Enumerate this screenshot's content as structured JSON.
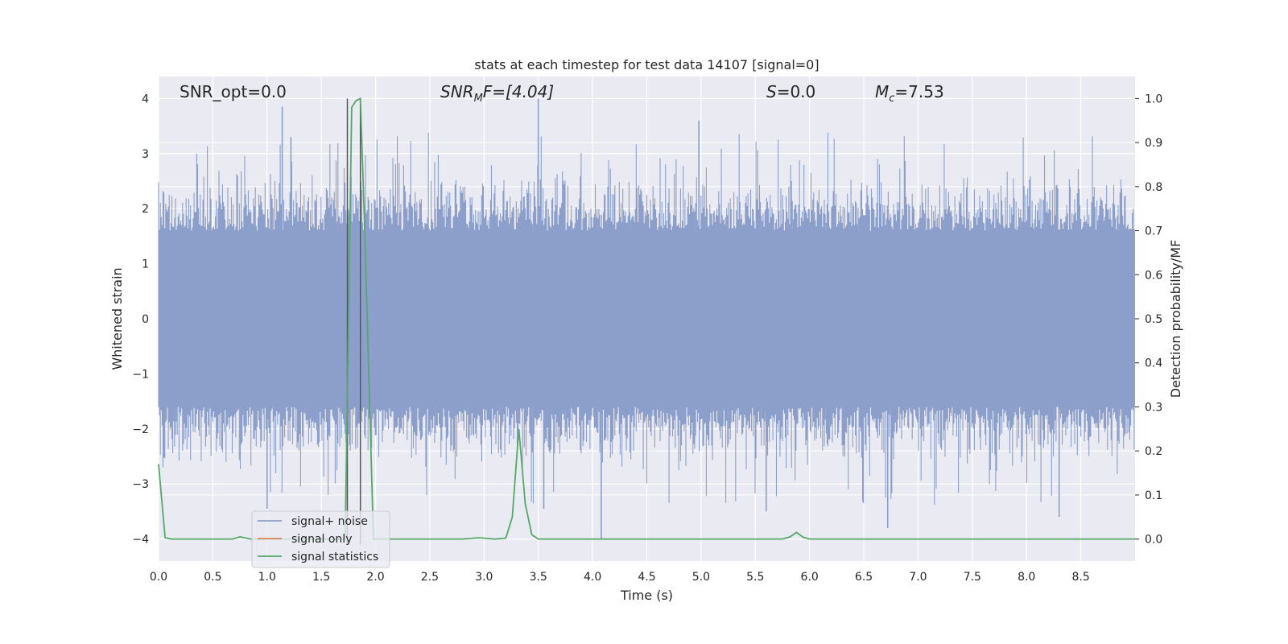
{
  "chart_data": {
    "type": "line",
    "title": "stats at each timestep for test data 14107 [signal=0]",
    "xlabel": "Time (s)",
    "ylabel": "Whitened strain",
    "y2label": "Detection probability/MF",
    "xlim": [
      0,
      9
    ],
    "ylim": [
      -4.4,
      4.4
    ],
    "y2lim": [
      -0.05,
      1.05
    ],
    "x_ticks": [
      0.0,
      0.5,
      1.0,
      1.5,
      2.0,
      2.5,
      3.0,
      3.5,
      4.0,
      4.5,
      5.0,
      5.5,
      6.0,
      6.5,
      7.0,
      7.5,
      8.0,
      8.5
    ],
    "x_tick_labels": [
      "0.0",
      "0.5",
      "1.0",
      "1.5",
      "2.0",
      "2.5",
      "3.0",
      "3.5",
      "4.0",
      "4.5",
      "5.0",
      "5.5",
      "6.0",
      "6.5",
      "7.0",
      "7.5",
      "8.0",
      "8.5"
    ],
    "y_ticks": [
      4,
      3,
      2,
      1,
      0,
      -1,
      -2,
      -3,
      -4
    ],
    "y_tick_labels": [
      "4",
      "3",
      "2",
      "1",
      "0",
      "−1",
      "−2",
      "−3",
      "−4"
    ],
    "y2_ticks": [
      1.0,
      0.9,
      0.8,
      0.7,
      0.6,
      0.5,
      0.4,
      0.3,
      0.2,
      0.1,
      0.0
    ],
    "y2_tick_labels": [
      "1.0",
      "0.9",
      "0.8",
      "0.7",
      "0.6",
      "0.5",
      "0.4",
      "0.3",
      "0.2",
      "0.1",
      "0.0"
    ],
    "grid": true,
    "legend_position": "lower-left",
    "annotations": {
      "snr_opt": "SNR_opt=0.0",
      "snr_mf_base": "SNR",
      "snr_mf_sub": "M",
      "snr_mf_rest": "F=[4.04]",
      "s_italic": "S",
      "s_rest": "=0.0",
      "mc_italic": "M",
      "mc_sub": "c",
      "mc_rest": "=7.53"
    },
    "series": [
      {
        "name": "signal+ noise",
        "color": "#8c9fca",
        "kind": "noise",
        "amplitude_core": 1.6,
        "peaks": [
          {
            "x": 1.14,
            "y": 3.85
          },
          {
            "x": 1.22,
            "y": 3.3
          },
          {
            "x": 3.5,
            "y": 4.0
          },
          {
            "x": 4.98,
            "y": 3.6
          },
          {
            "x": 4.08,
            "y": -4.0
          },
          {
            "x": 6.72,
            "y": -3.8
          },
          {
            "x": 8.3,
            "y": -3.6
          },
          {
            "x": 5.6,
            "y": -3.5
          },
          {
            "x": 3.55,
            "y": -3.45
          },
          {
            "x": 1.0,
            "y": -3.45
          }
        ]
      },
      {
        "name": "signal only",
        "color": "#dd8452",
        "values": []
      },
      {
        "name": "signal statistics",
        "color": "#55a868",
        "axis": "right",
        "x": [
          0.0,
          0.06,
          0.12,
          0.3,
          0.6,
          0.68,
          0.75,
          0.85,
          1.72,
          1.78,
          1.82,
          1.86,
          1.9,
          1.98,
          2.1,
          2.8,
          2.95,
          3.1,
          3.2,
          3.26,
          3.32,
          3.38,
          3.44,
          3.5,
          5.75,
          5.82,
          5.88,
          5.94,
          6.0,
          9.0
        ],
        "values": [
          0.17,
          0.003,
          0.0,
          0.0,
          0.0,
          0.0,
          0.005,
          0.0,
          0.0,
          0.98,
          0.995,
          1.0,
          0.7,
          0.0,
          0.0,
          0.0,
          0.003,
          0.0,
          0.002,
          0.05,
          0.25,
          0.08,
          0.01,
          0.0,
          0.0,
          0.005,
          0.015,
          0.004,
          0.0,
          0.0
        ]
      }
    ],
    "vertical_lines": [
      {
        "x": 1.74,
        "y_from": -4.1,
        "y_to": 4.0,
        "color": "#555555"
      },
      {
        "x": 1.86,
        "y_from": -4.1,
        "y_to": 4.0,
        "color": "#555555"
      }
    ]
  }
}
